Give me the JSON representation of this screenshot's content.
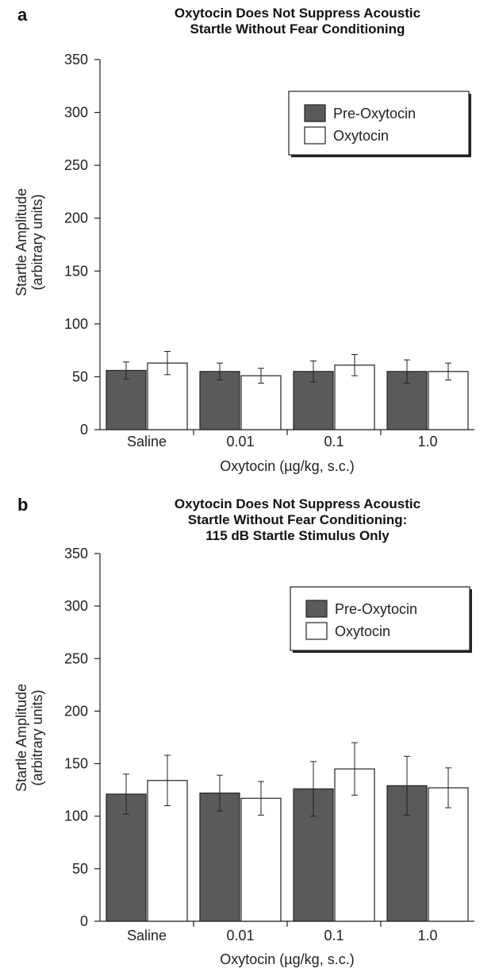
{
  "chart_data": [
    {
      "type": "bar",
      "panel": "a",
      "title": [
        "Oxytocin Does Not Suppress Acoustic",
        "Startle Without Fear Conditioning"
      ],
      "xlabel": "Oxytocin (µg/kg, s.c.)",
      "ylabel": [
        "Startle Amplitude",
        "(arbitrary units)"
      ],
      "ylim": [
        0,
        350
      ],
      "yticks": [
        0,
        50,
        100,
        150,
        200,
        250,
        300,
        350
      ],
      "categories": [
        "Saline",
        "0.01",
        "0.1",
        "1.0"
      ],
      "legend_position": "top-right",
      "series": [
        {
          "name": "Pre-Oxytocin",
          "color": "#5a5a5a",
          "values": [
            56,
            55,
            55,
            55
          ],
          "errors": [
            8,
            8,
            10,
            11
          ]
        },
        {
          "name": "Oxytocin",
          "color": "#ffffff",
          "values": [
            63,
            51,
            61,
            55
          ],
          "errors": [
            11,
            7,
            10,
            8
          ]
        }
      ]
    },
    {
      "type": "bar",
      "panel": "b",
      "title": [
        "Oxytocin Does Not Suppress Acoustic",
        "Startle Without Fear Conditioning:",
        "115 dB Startle Stimulus Only"
      ],
      "xlabel": "Oxytocin (µg/kg, s.c.)",
      "ylabel": [
        "Startle Amplitude",
        "(arbitrary units)"
      ],
      "ylim": [
        0,
        350
      ],
      "yticks": [
        0,
        50,
        100,
        150,
        200,
        250,
        300,
        350
      ],
      "categories": [
        "Saline",
        "0.01",
        "0.1",
        "1.0"
      ],
      "legend_position": "top-right",
      "series": [
        {
          "name": "Pre-Oxytocin",
          "color": "#5a5a5a",
          "values": [
            121,
            122,
            126,
            129
          ],
          "errors": [
            19,
            17,
            26,
            28
          ]
        },
        {
          "name": "Oxytocin",
          "color": "#ffffff",
          "values": [
            134,
            117,
            145,
            127
          ],
          "errors": [
            24,
            16,
            25,
            19
          ]
        }
      ]
    }
  ]
}
